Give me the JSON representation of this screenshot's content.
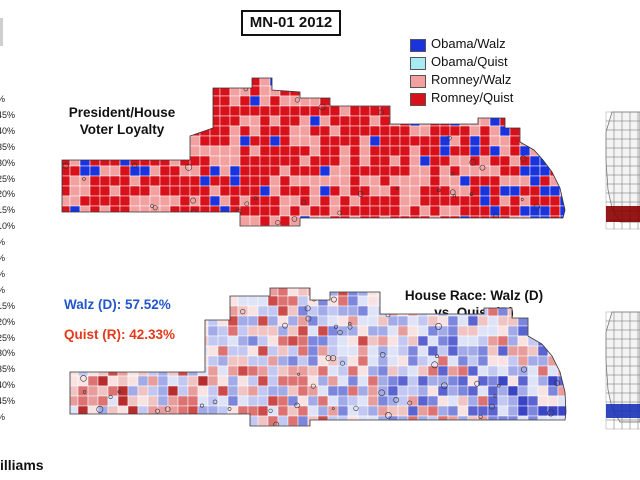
{
  "title": "MN-01 2012",
  "legend": [
    {
      "label": "Obama/Walz",
      "color": "#1a33dd"
    },
    {
      "label": "Obama/Quist",
      "color": "#a6ecf2"
    },
    {
      "label": "Romney/Walz",
      "color": "#f2a0a0"
    },
    {
      "label": "Romney/Quist",
      "color": "#d8101a"
    }
  ],
  "panels": {
    "loyalty_title_line1": "President/House",
    "loyalty_title_line2": "Voter Loyalty",
    "house_title_line1": "House Race: Walz (D)",
    "house_title_line2": "vs. Quist (R)"
  },
  "results": {
    "walz": "Walz (D): 57.52%",
    "quist": "Quist (R): 42.33%"
  },
  "left_scale_ticks": [
    "%",
    "45%",
    "40%",
    "35%",
    "30%",
    "25%",
    "20%",
    "15%",
    "10%",
    "%",
    "%",
    "%",
    "%",
    "15%",
    "20%",
    "25%",
    "30%",
    "35%",
    "40%",
    "45%",
    "%"
  ],
  "footer_name": "illiams",
  "colors": {
    "obama_walz": "#1a33dd",
    "obama_quist": "#a6ecf2",
    "romney_walz": "#f2a0a0",
    "romney_quist": "#d8101a",
    "walz_strong": "#2a3ad0",
    "quist_strong": "#d32a2a"
  }
}
